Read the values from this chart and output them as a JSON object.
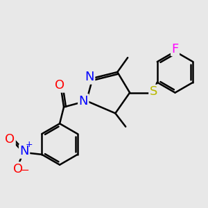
{
  "bg_color": "#e8e8e8",
  "bond_color": "#000000",
  "bond_width": 1.8,
  "atom_colors": {
    "N": "#0000ff",
    "O": "#ff0000",
    "S": "#b8b800",
    "F": "#ff00ff",
    "C": "#000000"
  }
}
